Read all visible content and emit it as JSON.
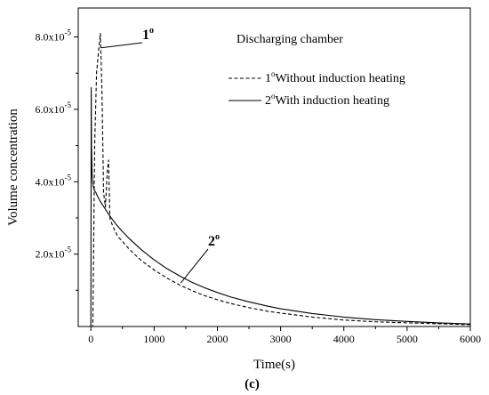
{
  "chart_data": {
    "type": "line",
    "panel_label": "(c)",
    "title": "",
    "xlabel": "Time(s)",
    "ylabel": "Volume concentration",
    "xlim": [
      -200,
      6000
    ],
    "ylim": [
      0,
      8.8e-05
    ],
    "x_ticks": [
      0,
      1000,
      2000,
      3000,
      4000,
      5000,
      6000
    ],
    "x_tick_labels": [
      "0",
      "1000",
      "2000",
      "3000",
      "4000",
      "5000",
      "6000"
    ],
    "y_ticks": [
      2e-05,
      4e-05,
      6e-05,
      8e-05
    ],
    "y_tick_labels": [
      {
        "mantissa": "2.0x10",
        "exponent": "-5"
      },
      {
        "mantissa": "4.0x10",
        "exponent": "-5"
      },
      {
        "mantissa": "6.0x10",
        "exponent": "-5"
      },
      {
        "mantissa": "8.0x10",
        "exponent": "-5"
      }
    ],
    "grid": false,
    "legend": {
      "title": "Discharging chamber",
      "placement": "top-right",
      "entries": [
        {
          "sup": "o",
          "number": "1",
          "text": "Without induction heating",
          "style": "dashed"
        },
        {
          "sup": "o",
          "number": "2",
          "text": "With induction heating",
          "style": "solid"
        }
      ]
    },
    "annotations": [
      {
        "number": "1",
        "sup": "o",
        "target_x": 160,
        "target_y": 7.7e-05
      },
      {
        "number": "2",
        "sup": "o",
        "target_x": 1420,
        "target_y": 1.2e-05
      }
    ],
    "series": [
      {
        "name": "1°Without induction heating",
        "style": "dashed",
        "x": [
          0,
          30,
          60,
          90,
          120,
          150,
          175,
          200,
          230,
          260,
          280,
          300,
          320,
          350,
          380,
          420,
          500,
          600,
          700,
          800,
          1000,
          1200,
          1400,
          1600,
          1800,
          2000,
          2200,
          2500,
          2800,
          3000,
          3500,
          4000,
          4500,
          5000,
          5500,
          6000
        ],
        "y": [
          0,
          0,
          5e-05,
          7e-05,
          7.6e-05,
          8.1e-05,
          6.5e-05,
          3.7e-05,
          3.3e-05,
          4.3e-05,
          4.6e-05,
          3e-05,
          2.9e-05,
          2.75e-05,
          2.65e-05,
          2.5e-05,
          2.35e-05,
          2.15e-05,
          1.98e-05,
          1.82e-05,
          1.56e-05,
          1.34e-05,
          1.15e-05,
          9.9e-06,
          8.5e-06,
          7.4e-06,
          6.4e-06,
          5.2e-06,
          4.2e-06,
          3.7e-06,
          2.6e-06,
          1.8e-06,
          1.3e-06,
          1e-06,
          7.5e-07,
          5e-07
        ]
      },
      {
        "name": "2°With induction heating",
        "style": "solid",
        "x": [
          0,
          5,
          10,
          20,
          30,
          40,
          60,
          80,
          100,
          150,
          200,
          300,
          400,
          500,
          600,
          800,
          1000,
          1200,
          1400,
          1600,
          1800,
          2000,
          2200,
          2500,
          2800,
          3000,
          3500,
          4000,
          4500,
          5000,
          5500,
          6000
        ],
        "y": [
          0,
          6.6e-05,
          5e-05,
          4.2e-05,
          3.95e-05,
          3.85e-05,
          3.75e-05,
          3.7e-05,
          3.62e-05,
          3.45e-05,
          3.32e-05,
          3.05e-05,
          2.82e-05,
          2.62e-05,
          2.44e-05,
          2.12e-05,
          1.84e-05,
          1.6e-05,
          1.4e-05,
          1.22e-05,
          1.07e-05,
          9.4e-06,
          8.2e-06,
          6.8e-06,
          5.6e-06,
          4.9e-06,
          3.6e-06,
          2.6e-06,
          1.9e-06,
          1.4e-06,
          1e-06,
          7e-07
        ]
      }
    ]
  }
}
